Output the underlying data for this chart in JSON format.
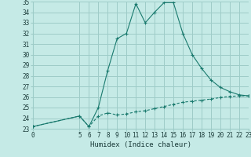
{
  "xlabel": "Humidex (Indice chaleur)",
  "bg_color": "#c5eae6",
  "grid_color": "#9eccc8",
  "line_color": "#1a7a6e",
  "x_main": [
    0,
    5,
    6,
    7,
    8,
    9,
    10,
    11,
    12,
    13,
    14,
    15,
    16,
    17,
    18,
    19,
    20,
    21,
    22,
    23
  ],
  "y_main": [
    23.2,
    24.2,
    23.2,
    25.0,
    28.5,
    31.5,
    32.0,
    34.8,
    33.0,
    34.0,
    34.9,
    34.9,
    32.0,
    30.0,
    28.7,
    27.6,
    26.9,
    26.5,
    26.2,
    26.1
  ],
  "x_flat": [
    0,
    5,
    6,
    7,
    8,
    9,
    10,
    11,
    12,
    13,
    14,
    15,
    16,
    17,
    18,
    19,
    20,
    21,
    22,
    23
  ],
  "y_flat": [
    23.2,
    24.2,
    23.2,
    24.2,
    24.5,
    24.3,
    24.4,
    24.6,
    24.7,
    24.9,
    25.1,
    25.3,
    25.5,
    25.6,
    25.7,
    25.8,
    25.95,
    26.05,
    26.1,
    26.1
  ],
  "ylim": [
    23,
    35
  ],
  "xlim": [
    0,
    23
  ],
  "yticks": [
    23,
    24,
    25,
    26,
    27,
    28,
    29,
    30,
    31,
    32,
    33,
    34,
    35
  ],
  "xticks": [
    0,
    5,
    6,
    7,
    8,
    9,
    10,
    11,
    12,
    13,
    14,
    15,
    16,
    17,
    18,
    19,
    20,
    21,
    22,
    23
  ],
  "xlabel_fontsize": 6.5,
  "tick_fontsize": 5.5
}
